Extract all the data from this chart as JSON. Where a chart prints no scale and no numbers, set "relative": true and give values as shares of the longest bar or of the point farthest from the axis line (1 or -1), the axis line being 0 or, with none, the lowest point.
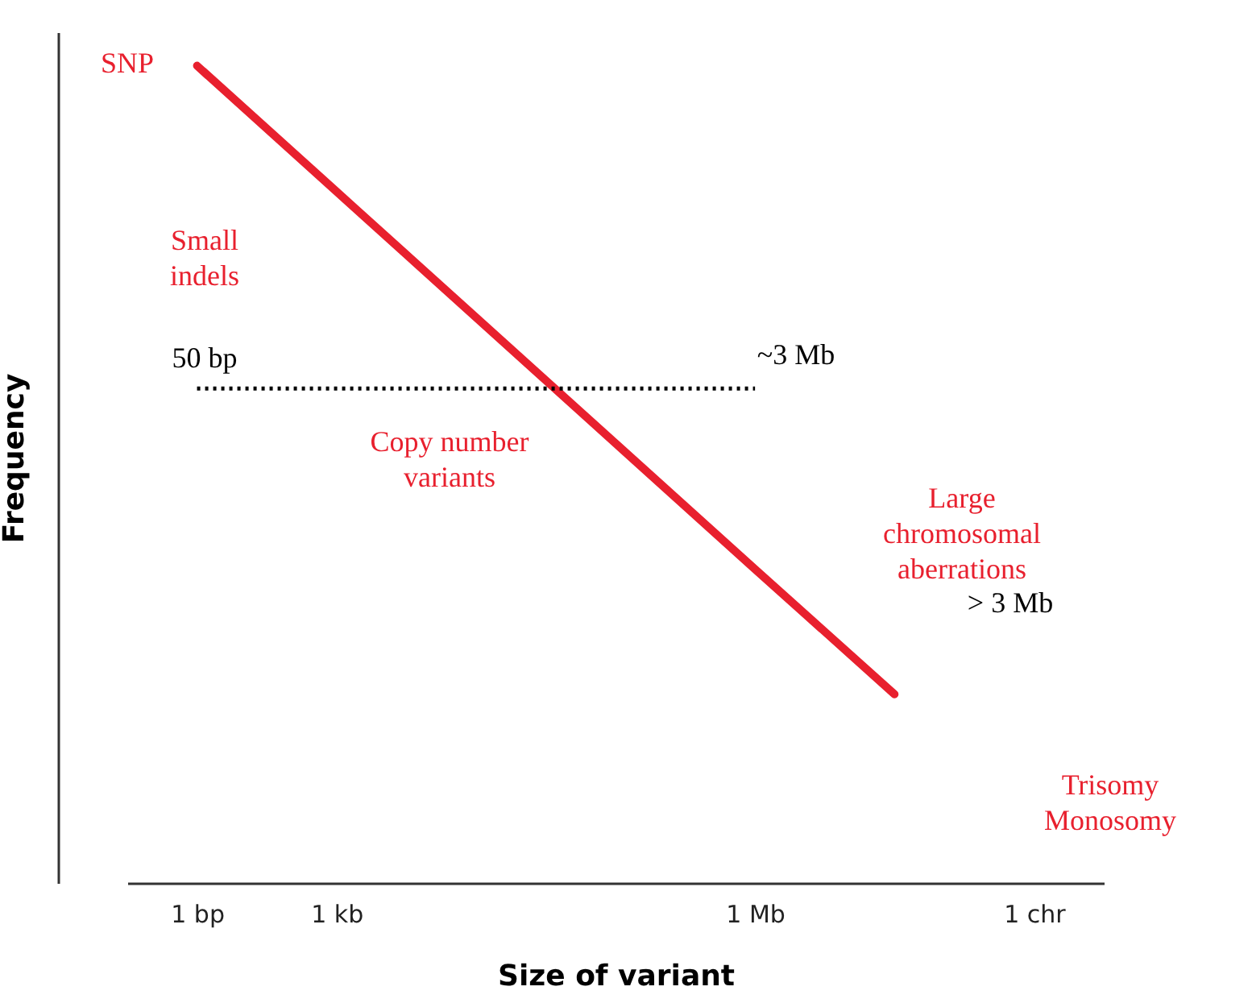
{
  "chart_data": {
    "type": "line",
    "relative": true,
    "xlabel": "Size of variant",
    "ylabel": "Frequency",
    "categories": [
      "1 bp",
      "1 kb",
      null,
      null,
      "1 Mb",
      null,
      "1 chr"
    ],
    "tick_labels": "x",
    "series": [
      {
        "color": "#e8202e",
        "values": [
          1,
          0.846,
          0.692,
          0.538,
          0.384,
          0.231,
          null
        ]
      },
      {
        "color": "#000000",
        "values": [
          0.605,
          0.605,
          0.605,
          0.605,
          0.605,
          null,
          null
        ],
        "line_style": "dotted"
      }
    ],
    "annotations": [
      "SNP",
      "Small\nindels",
      "50 bp",
      "~3 Mb",
      "Copy number\nvariants",
      "Large\nchromosomal\naberrations",
      "> 3 Mb",
      "Trisomy\nMonosomy"
    ]
  }
}
